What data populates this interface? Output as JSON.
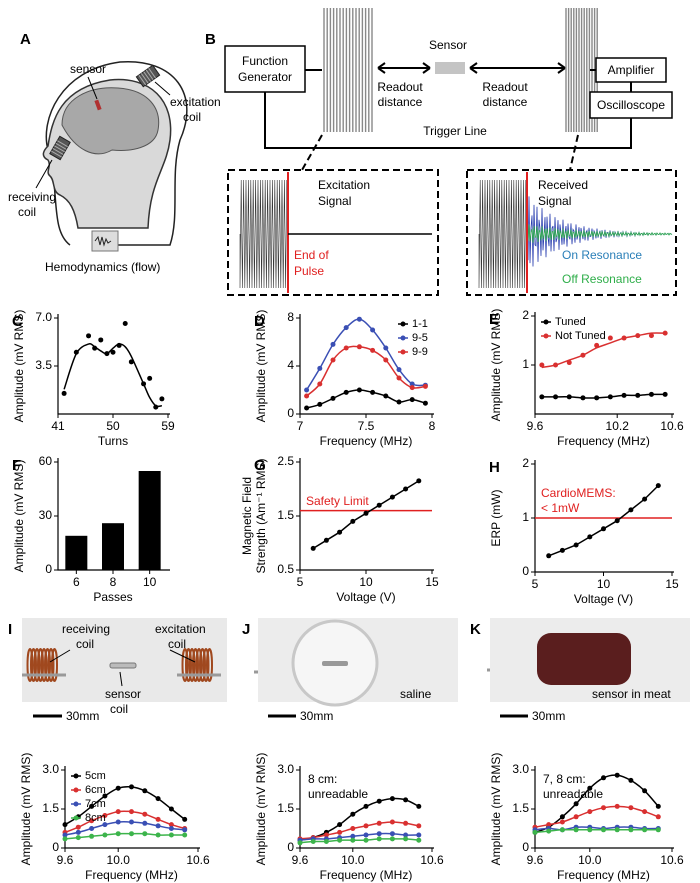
{
  "figure": {
    "panel_a": {
      "letter": "A",
      "sensor": "sensor",
      "excitation_coil": [
        "excitation",
        "coil"
      ],
      "receiving_coil": [
        "receiving",
        "coil"
      ],
      "hemodynamics": "Hemodynamics (flow)"
    },
    "panel_b": {
      "letter": "B",
      "function_generator": [
        "Function",
        "Generator"
      ],
      "sensor": "Sensor",
      "readout_left": [
        "Readout",
        "distance"
      ],
      "readout_right": [
        "Readout",
        "distance"
      ],
      "amplifier": "Amplifier",
      "oscilloscope": "Oscilloscope",
      "trigger_line": "Trigger Line",
      "excitation_signal": [
        "Excitation",
        "Signal"
      ],
      "end_of_pulse": [
        "End of",
        "Pulse"
      ],
      "received_signal": [
        "Received",
        "Signal"
      ],
      "on_resonance": "On Resonance",
      "off_resonance": "Off Resonance"
    },
    "photo_i": {
      "letter": "I",
      "receiving_coil": [
        "receiving",
        "coil"
      ],
      "excitation_coil": [
        "excitation",
        "coil"
      ],
      "sensor_coil": [
        "sensor",
        "coil"
      ],
      "scale": "30mm"
    },
    "photo_j": {
      "letter": "J",
      "scale": "30mm",
      "saline": "saline"
    },
    "photo_k": {
      "letter": "K",
      "scale": "30mm",
      "meat": "sensor in meat"
    }
  },
  "chart_data": [
    {
      "panel": "C",
      "type": "scatter",
      "xlabel": "Turns",
      "ylabel": "Amplitude (mV RMS)",
      "xlim": [
        41,
        59
      ],
      "xticks": [
        41,
        50,
        59
      ],
      "ylim": [
        0,
        7
      ],
      "yticks": [
        3.5,
        {
          "value": 7,
          "label": "7.0"
        }
      ],
      "series": [
        {
          "color": "#000000",
          "x": [
            42,
            44,
            46,
            47,
            48,
            49,
            50,
            51,
            52,
            53,
            55,
            56,
            57,
            58
          ],
          "values": [
            1.5,
            4.5,
            5.7,
            4.8,
            5.4,
            4.4,
            4.5,
            5.0,
            6.6,
            3.8,
            2.2,
            2.6,
            0.5,
            1.1
          ],
          "fit": [
            1.8,
            4.4,
            5.1,
            4.9,
            4.6,
            4.4,
            4.8,
            5.1,
            4.9,
            4.2,
            2.2,
            1.2,
            0.6,
            0.6
          ]
        }
      ]
    },
    {
      "panel": "D",
      "type": "scatter",
      "xlabel": "Frequency (MHz)",
      "ylabel": "Amplitude (mV RMS)",
      "xlim": [
        7,
        8
      ],
      "xticks": [
        7,
        7.5,
        8
      ],
      "ylim": [
        0,
        8
      ],
      "yticks": [
        0,
        4,
        8
      ],
      "legend": "upper right",
      "series": [
        {
          "name": "1-1",
          "color": "#000000",
          "x": [
            7.05,
            7.15,
            7.25,
            7.35,
            7.45,
            7.55,
            7.65,
            7.75,
            7.85,
            7.95
          ],
          "values": [
            0.5,
            0.8,
            1.3,
            1.8,
            2.0,
            1.8,
            1.5,
            1.0,
            1.2,
            0.9
          ]
        },
        {
          "name": "9-5",
          "color": "#3a4fb4",
          "x": [
            7.05,
            7.15,
            7.25,
            7.35,
            7.45,
            7.55,
            7.65,
            7.75,
            7.85,
            7.95
          ],
          "values": [
            2.0,
            3.8,
            5.8,
            7.2,
            7.9,
            7.0,
            5.5,
            3.7,
            2.5,
            2.4
          ]
        },
        {
          "name": "9-9",
          "color": "#d93030",
          "x": [
            7.05,
            7.15,
            7.25,
            7.35,
            7.45,
            7.55,
            7.65,
            7.75,
            7.85,
            7.95
          ],
          "values": [
            1.5,
            2.5,
            4.5,
            5.5,
            5.6,
            5.3,
            4.5,
            3.0,
            2.2,
            2.3
          ]
        }
      ]
    },
    {
      "panel": "E",
      "type": "scatter",
      "xlabel": "Frequency (MHz)",
      "ylabel": "Amplitude (mV RMS)",
      "xlim": [
        9.6,
        10.6
      ],
      "xticks": [
        9.6,
        10.2,
        10.6
      ],
      "ylim": [
        0,
        2
      ],
      "yticks": [
        1,
        2
      ],
      "legend": "upper left",
      "series": [
        {
          "name": "Tuned",
          "color": "#000000",
          "x": [
            9.65,
            9.75,
            9.85,
            9.95,
            10.05,
            10.15,
            10.25,
            10.35,
            10.45,
            10.55
          ],
          "values": [
            0.35,
            0.35,
            0.35,
            0.33,
            0.33,
            0.35,
            0.38,
            0.38,
            0.4,
            0.4
          ]
        },
        {
          "name": "Not Tuned",
          "color": "#d93030",
          "x": [
            9.65,
            9.75,
            9.85,
            9.95,
            10.05,
            10.15,
            10.25,
            10.35,
            10.45,
            10.55
          ],
          "values": [
            1.0,
            1.0,
            1.05,
            1.2,
            1.4,
            1.55,
            1.55,
            1.6,
            1.6,
            1.65
          ],
          "fit": [
            0.95,
            1.0,
            1.1,
            1.2,
            1.35,
            1.45,
            1.55,
            1.6,
            1.65,
            1.65
          ]
        }
      ]
    },
    {
      "panel": "F",
      "type": "bar",
      "xlabel": "Passes",
      "ylabel": "Amplitude (mV RMS)",
      "categories": [
        "6",
        "8",
        "10"
      ],
      "values": [
        19,
        26,
        55
      ],
      "color": "#000000",
      "ylim": [
        0,
        60
      ],
      "yticks": [
        0,
        30,
        60
      ]
    },
    {
      "panel": "G",
      "type": "line",
      "xlabel": "Voltage (V)",
      "ylabel": [
        "Magnetic Field",
        "Strength (Am⁻¹ RMS)"
      ],
      "xlim": [
        5,
        15
      ],
      "xticks": [
        5,
        10,
        15
      ],
      "ylim": [
        0.5,
        2.5
      ],
      "yticks": [
        0.5,
        1.5,
        2.5
      ],
      "hline": {
        "value": 1.6,
        "label": [
          "Safety Limit"
        ],
        "color": "#e02020"
      },
      "series": [
        {
          "color": "#000000",
          "x": [
            6,
            7,
            8,
            9,
            10,
            11,
            12,
            13,
            14
          ],
          "values": [
            0.9,
            1.05,
            1.2,
            1.4,
            1.55,
            1.7,
            1.85,
            2.0,
            2.15
          ]
        }
      ]
    },
    {
      "panel": "H",
      "type": "line",
      "xlabel": "Voltage (V)",
      "ylabel": "ERP (mW)",
      "xlim": [
        5,
        15
      ],
      "xticks": [
        5,
        10,
        15
      ],
      "ylim": [
        0,
        2
      ],
      "yticks": [
        0,
        1,
        2
      ],
      "hline": {
        "value": 1,
        "label": [
          "CardioMEMS:",
          "< 1mW"
        ],
        "color": "#e02020"
      },
      "series": [
        {
          "color": "#000000",
          "x": [
            6,
            7,
            8,
            9,
            10,
            11,
            12,
            13,
            14
          ],
          "values": [
            0.3,
            0.4,
            0.5,
            0.65,
            0.8,
            0.95,
            1.15,
            1.35,
            1.6
          ]
        }
      ]
    },
    {
      "type": "scatter",
      "xlabel": "Frequency (MHz)",
      "ylabel": "Amplitude (mV RMS)",
      "xlim": [
        9.6,
        10.6
      ],
      "xticks": [
        9.6,
        {
          "value": 10,
          "label": "10.0"
        },
        10.6
      ],
      "ylim": [
        0,
        3
      ],
      "yticks": [
        0,
        1.5,
        {
          "value": 3,
          "label": "3.0"
        }
      ],
      "legend": "upper left",
      "series": [
        {
          "name": "5cm",
          "color": "#000000",
          "x": [
            9.6,
            9.7,
            9.8,
            9.9,
            10.0,
            10.1,
            10.2,
            10.3,
            10.4,
            10.5
          ],
          "values": [
            0.9,
            1.2,
            1.6,
            2.0,
            2.3,
            2.35,
            2.2,
            1.9,
            1.5,
            1.1
          ]
        },
        {
          "name": "6cm",
          "color": "#d93030",
          "x": [
            9.6,
            9.7,
            9.8,
            9.9,
            10.0,
            10.1,
            10.2,
            10.3,
            10.4,
            10.5
          ],
          "values": [
            0.6,
            0.8,
            1.05,
            1.25,
            1.4,
            1.4,
            1.3,
            1.1,
            0.9,
            0.75
          ]
        },
        {
          "name": "7cm",
          "color": "#3a4fb4",
          "x": [
            9.6,
            9.7,
            9.8,
            9.9,
            10.0,
            10.1,
            10.2,
            10.3,
            10.4,
            10.5
          ],
          "values": [
            0.5,
            0.6,
            0.75,
            0.9,
            1.0,
            1.0,
            0.95,
            0.85,
            0.75,
            0.7
          ]
        },
        {
          "name": "8cm",
          "color": "#3cb44b",
          "x": [
            9.6,
            9.7,
            9.8,
            9.9,
            10.0,
            10.1,
            10.2,
            10.3,
            10.4,
            10.5
          ],
          "values": [
            0.35,
            0.4,
            0.45,
            0.5,
            0.55,
            0.55,
            0.55,
            0.5,
            0.5,
            0.5
          ]
        }
      ]
    },
    {
      "type": "scatter",
      "xlabel": "Frequency (MHz)",
      "ylabel": "Amplitude (mV RMS)",
      "xlim": [
        9.6,
        10.6
      ],
      "xticks": [
        9.6,
        {
          "value": 10,
          "label": "10.0"
        },
        10.6
      ],
      "ylim": [
        0,
        3
      ],
      "yticks": [
        0,
        1.5,
        {
          "value": 3,
          "label": "3.0"
        }
      ],
      "annotation": [
        "8 cm:",
        "unreadable"
      ],
      "series": [
        {
          "color": "#000000",
          "x": [
            9.6,
            9.7,
            9.8,
            9.9,
            10.0,
            10.1,
            10.2,
            10.3,
            10.4,
            10.5
          ],
          "values": [
            0.3,
            0.4,
            0.6,
            0.9,
            1.3,
            1.6,
            1.8,
            1.9,
            1.85,
            1.6
          ]
        },
        {
          "color": "#d93030",
          "x": [
            9.6,
            9.7,
            9.8,
            9.9,
            10.0,
            10.1,
            10.2,
            10.3,
            10.4,
            10.5
          ],
          "values": [
            0.35,
            0.4,
            0.5,
            0.6,
            0.75,
            0.85,
            0.95,
            1.0,
            0.95,
            0.85
          ]
        },
        {
          "color": "#3a4fb4",
          "x": [
            9.6,
            9.7,
            9.8,
            9.9,
            10.0,
            10.1,
            10.2,
            10.3,
            10.4,
            10.5
          ],
          "values": [
            0.3,
            0.35,
            0.35,
            0.4,
            0.45,
            0.5,
            0.55,
            0.55,
            0.5,
            0.5
          ]
        },
        {
          "color": "#3cb44b",
          "x": [
            9.6,
            9.7,
            9.8,
            9.9,
            10.0,
            10.1,
            10.2,
            10.3,
            10.4,
            10.5
          ],
          "values": [
            0.2,
            0.25,
            0.25,
            0.3,
            0.3,
            0.3,
            0.35,
            0.35,
            0.35,
            0.3
          ]
        }
      ]
    },
    {
      "type": "scatter",
      "xlabel": "Frequency (MHz)",
      "ylabel": "Amplitude (mV RMS)",
      "xlim": [
        9.6,
        10.6
      ],
      "xticks": [
        9.6,
        {
          "value": 10,
          "label": "10.0"
        },
        10.6
      ],
      "ylim": [
        0,
        3
      ],
      "yticks": [
        0,
        1.5,
        {
          "value": 3,
          "label": "3.0"
        }
      ],
      "annotation": [
        "7, 8 cm:",
        "unreadable"
      ],
      "series": [
        {
          "color": "#000000",
          "x": [
            9.6,
            9.7,
            9.8,
            9.9,
            10.0,
            10.1,
            10.2,
            10.3,
            10.4,
            10.5
          ],
          "values": [
            0.6,
            0.8,
            1.2,
            1.7,
            2.3,
            2.7,
            2.8,
            2.6,
            2.2,
            1.6
          ]
        },
        {
          "color": "#d93030",
          "x": [
            9.6,
            9.7,
            9.8,
            9.9,
            10.0,
            10.1,
            10.2,
            10.3,
            10.4,
            10.5
          ],
          "values": [
            0.8,
            0.9,
            1.0,
            1.2,
            1.4,
            1.55,
            1.6,
            1.55,
            1.4,
            1.2
          ]
        },
        {
          "color": "#3a4fb4",
          "x": [
            9.6,
            9.7,
            9.8,
            9.9,
            10.0,
            10.1,
            10.2,
            10.3,
            10.4,
            10.5
          ],
          "values": [
            0.7,
            0.75,
            0.7,
            0.8,
            0.8,
            0.75,
            0.8,
            0.8,
            0.75,
            0.75
          ]
        },
        {
          "color": "#3cb44b",
          "x": [
            9.6,
            9.7,
            9.8,
            9.9,
            10.0,
            10.1,
            10.2,
            10.3,
            10.4,
            10.5
          ],
          "values": [
            0.6,
            0.65,
            0.7,
            0.7,
            0.7,
            0.7,
            0.7,
            0.7,
            0.7,
            0.7
          ]
        }
      ]
    }
  ]
}
